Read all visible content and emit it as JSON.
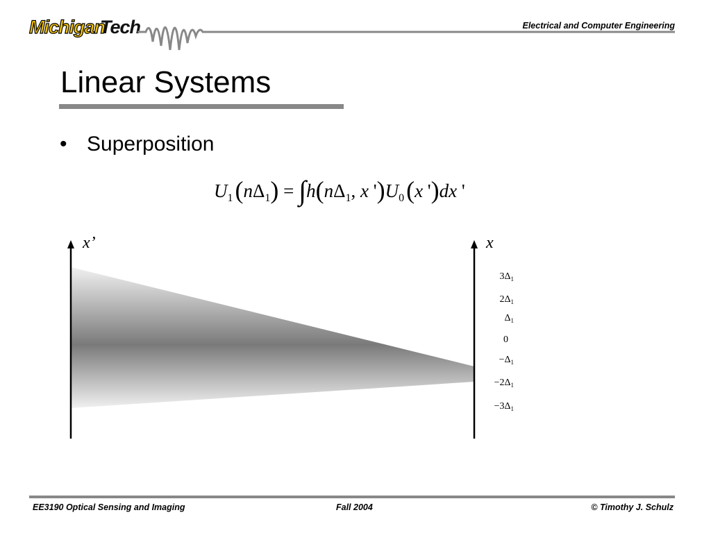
{
  "header": {
    "logo": {
      "first": "Michigan",
      "second": "Tech"
    },
    "department": "Electrical and Computer Engineering"
  },
  "title": "Linear Systems",
  "bullets": [
    "Superposition"
  ],
  "equation": [
    "U",
    "1",
    "(",
    "n",
    "Δ",
    "1",
    ")",
    " = ",
    "∫",
    "h",
    "(",
    "n",
    "Δ",
    "1",
    ", ",
    "x",
    " '",
    ")",
    "U",
    "0",
    "(",
    "x",
    " '",
    ")",
    "dx",
    " '"
  ],
  "diagram": {
    "input_axis": "x’",
    "output_axis": "x",
    "output_ticks": [
      {
        "main": "3Δ",
        "sub": "1"
      },
      {
        "main": "2Δ",
        "sub": "1"
      },
      {
        "main": "Δ",
        "sub": "1"
      },
      {
        "main": "0"
      },
      {
        "main": "−Δ",
        "sub": "1"
      },
      {
        "main": "−2Δ",
        "sub": "1"
      },
      {
        "main": "−3Δ",
        "sub": "1"
      }
    ]
  },
  "footer": {
    "course": "EE3190 Optical Sensing and Imaging",
    "term": "Fall 2004",
    "author": "© Timothy J. Schulz"
  }
}
